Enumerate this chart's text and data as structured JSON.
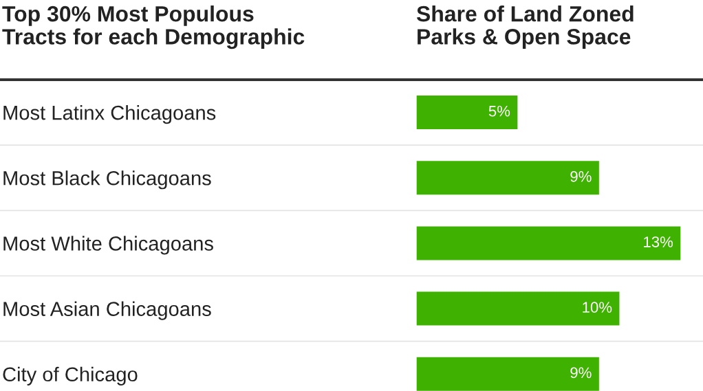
{
  "chart_data": {
    "type": "bar",
    "orientation": "horizontal",
    "ylabel": "Top 30% Most Populous\nTracts for each Demographic",
    "xlabel": "Share of Land Zoned\nParks & Open Space",
    "categories": [
      "Most Latinx Chicagoans",
      "Most Black Chicagoans",
      "Most White Chicagoans",
      "Most Asian Chicagoans",
      "City of Chicago"
    ],
    "values": [
      5,
      9,
      13,
      10,
      9
    ],
    "value_labels": [
      "5%",
      "9%",
      "13%",
      "10%",
      "9%"
    ],
    "color": "#3fb100",
    "grid": false,
    "tick_labels": "y"
  }
}
